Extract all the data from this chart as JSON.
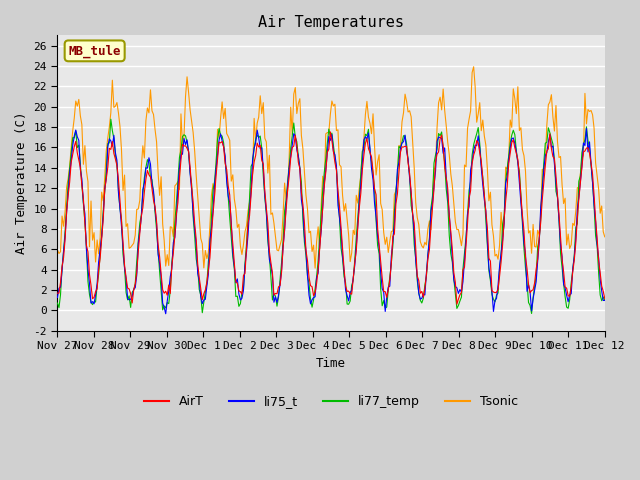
{
  "title": "Air Temperatures",
  "ylabel": "Air Temperature (C)",
  "xlabel": "Time",
  "ylim": [
    -2,
    27
  ],
  "yticks": [
    -2,
    0,
    2,
    4,
    6,
    8,
    10,
    12,
    14,
    16,
    18,
    20,
    22,
    24,
    26
  ],
  "station_label": "MB_tule",
  "station_label_color": "#8B0000",
  "station_box_facecolor": "#FFFFCC",
  "station_box_edgecolor": "#999900",
  "colors": {
    "AirT": "#FF0000",
    "li75_t": "#0000FF",
    "li77_temp": "#00BB00",
    "Tsonic": "#FF9900"
  },
  "legend_labels": [
    "AirT",
    "li75_t",
    "li77_temp",
    "Tsonic"
  ],
  "x_tick_labels": [
    "Nov 27",
    "Nov 28",
    "Nov 29",
    "Nov 30",
    "Dec 1",
    "Dec 2",
    "Dec 3",
    "Dec 4",
    "Dec 5",
    "Dec 6",
    "Dec 7",
    "Dec 8",
    "Dec 9",
    "Dec 10",
    "Dec 11",
    "Dec 12"
  ],
  "num_points": 360,
  "background_color": "#E8E8E8",
  "grid_color": "#FFFFFF",
  "font_family": "monospace"
}
